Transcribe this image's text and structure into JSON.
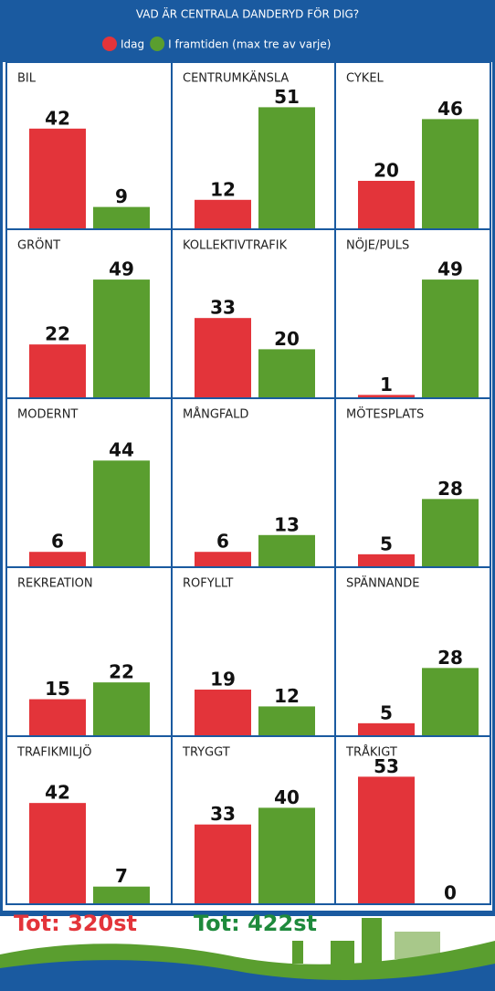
{
  "title": "VAD ÄR CENTRALA DANDERYD FÖR DIG?",
  "legend": [
    {
      "name": "Idag",
      "color": "#e3343a"
    },
    {
      "name": "I framtiden (max tre av varje)",
      "color": "#5a9e2f"
    }
  ],
  "chart_data": [
    {
      "type": "bar",
      "title": "BIL",
      "values": [
        42,
        9
      ],
      "ylim": [
        0,
        65
      ]
    },
    {
      "type": "bar",
      "title": "CENTRUMKÄNSLA",
      "values": [
        12,
        51
      ],
      "ylim": [
        0,
        65
      ]
    },
    {
      "type": "bar",
      "title": "CYKEL",
      "values": [
        20,
        46
      ],
      "ylim": [
        0,
        65
      ]
    },
    {
      "type": "bar",
      "title": "GRÖNT",
      "values": [
        22,
        49
      ],
      "ylim": [
        0,
        65
      ]
    },
    {
      "type": "bar",
      "title": "KOLLEKTIVTRAFIK",
      "values": [
        33,
        20
      ],
      "ylim": [
        0,
        65
      ]
    },
    {
      "type": "bar",
      "title": "NÖJE/PULS",
      "values": [
        1,
        49
      ],
      "ylim": [
        0,
        65
      ]
    },
    {
      "type": "bar",
      "title": "MODERNT",
      "values": [
        6,
        44
      ],
      "ylim": [
        0,
        65
      ]
    },
    {
      "type": "bar",
      "title": "MÅNGFALD",
      "values": [
        6,
        13
      ],
      "ylim": [
        0,
        65
      ]
    },
    {
      "type": "bar",
      "title": "MÖTESPLATS",
      "values": [
        5,
        28
      ],
      "ylim": [
        0,
        65
      ]
    },
    {
      "type": "bar",
      "title": "REKREATION",
      "values": [
        15,
        22
      ],
      "ylim": [
        0,
        65
      ]
    },
    {
      "type": "bar",
      "title": "ROFYLLT",
      "values": [
        19,
        12
      ],
      "ylim": [
        0,
        65
      ]
    },
    {
      "type": "bar",
      "title": "SPÄNNANDE",
      "values": [
        5,
        28
      ],
      "ylim": [
        0,
        65
      ]
    },
    {
      "type": "bar",
      "title": "TRAFIKMILJÖ",
      "values": [
        42,
        7
      ],
      "ylim": [
        0,
        65
      ]
    },
    {
      "type": "bar",
      "title": "TRYGGT",
      "values": [
        33,
        40
      ],
      "ylim": [
        0,
        65
      ]
    },
    {
      "type": "bar",
      "title": "TRÅKIGT",
      "values": [
        53,
        0
      ],
      "ylim": [
        0,
        65
      ]
    }
  ],
  "totals": [
    {
      "text": "Tot: 320st",
      "color": "#e3343a"
    },
    {
      "text": "Tot: 422st",
      "color": "#1e8a3c"
    }
  ]
}
